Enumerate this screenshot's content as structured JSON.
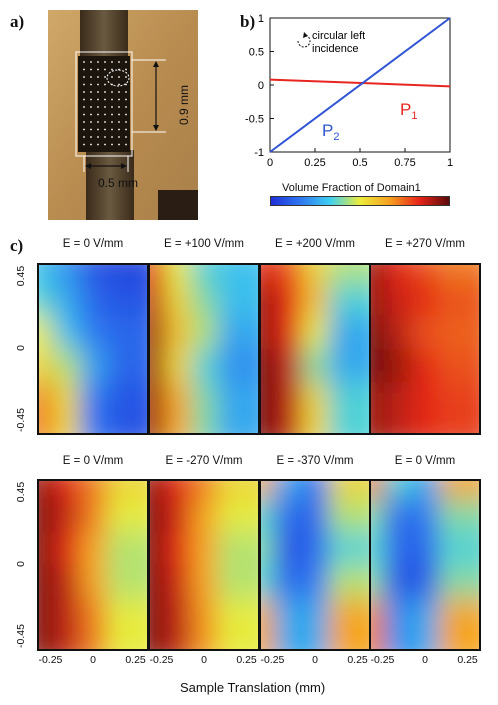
{
  "panel_labels": {
    "a": "a)",
    "b": "b)",
    "c": "c)"
  },
  "photo": {
    "dim_vertical": "0.9 mm",
    "dim_horizontal": "0.5 mm"
  },
  "chart_data": [
    {
      "type": "line",
      "panel": "b",
      "xlabel": "Volume Fraction of Domain1",
      "ylabel": "",
      "xlim": [
        0,
        1
      ],
      "ylim": [
        -1,
        1
      ],
      "xticks": [
        "0",
        "0.25",
        "0.5",
        "0.75",
        "1"
      ],
      "yticks": [
        "-1",
        "-0.5",
        "0",
        "0.5",
        "1"
      ],
      "annotation": "circular left incidence",
      "series": [
        {
          "name": "P1",
          "label_main": "P",
          "label_sub": "1",
          "color": "#e8251f",
          "x": [
            0,
            1
          ],
          "y": [
            0.08,
            -0.02
          ]
        },
        {
          "name": "P2",
          "label_main": "P",
          "label_sub": "2",
          "color": "#2f55d4",
          "x": [
            0,
            1
          ],
          "y": [
            -1,
            1
          ]
        }
      ],
      "colorbar": [
        "#1f2fd8",
        "#2f78f0",
        "#3fd0f0",
        "#ecec3a",
        "#f5a020",
        "#e82418",
        "#5a0a0a"
      ]
    },
    {
      "type": "heatmap",
      "panel": "c",
      "xlabel": "Sample Translation (mm)",
      "yticks": [
        "0.45",
        "0",
        "-0.45"
      ],
      "xticks": [
        "-0.25",
        "0",
        "0.25"
      ],
      "rows": [
        {
          "fields": [
            "E = 0 V/mm",
            "E = +100 V/mm",
            "E = +200 V/mm",
            "E = +270 V/mm"
          ]
        },
        {
          "fields": [
            "E = 0 V/mm",
            "E = -270 V/mm",
            "E = -370 V/mm",
            "E = 0 V/mm"
          ]
        }
      ],
      "maps": [
        [
          [
            0.35,
            0.25,
            0.1,
            0.05
          ],
          [
            0.4,
            0.3,
            0.15,
            0.1
          ],
          [
            0.55,
            0.35,
            0.2,
            0.15
          ],
          [
            0.6,
            0.5,
            0.3,
            0.15
          ],
          [
            0.75,
            0.6,
            0.2,
            0.1
          ]
        ],
        [
          [
            0.85,
            0.55,
            0.4,
            0.35
          ],
          [
            0.9,
            0.6,
            0.45,
            0.35
          ],
          [
            0.95,
            0.65,
            0.5,
            0.3
          ],
          [
            0.95,
            0.6,
            0.4,
            0.25
          ],
          [
            0.95,
            0.7,
            0.45,
            0.3
          ]
        ],
        [
          [
            0.85,
            0.8,
            0.6,
            0.5
          ],
          [
            0.95,
            0.85,
            0.65,
            0.4
          ],
          [
            0.95,
            0.85,
            0.55,
            0.3
          ],
          [
            1.0,
            0.9,
            0.45,
            0.3
          ],
          [
            1.0,
            0.9,
            0.6,
            0.4
          ]
        ],
        [
          [
            0.95,
            0.85,
            0.8,
            0.75
          ],
          [
            0.95,
            0.88,
            0.85,
            0.8
          ],
          [
            1.0,
            0.9,
            0.8,
            0.78
          ],
          [
            1.0,
            0.95,
            0.85,
            0.8
          ],
          [
            0.95,
            0.9,
            0.85,
            0.82
          ]
        ],
        [
          [
            0.95,
            0.85,
            0.75,
            0.6
          ],
          [
            0.98,
            0.9,
            0.75,
            0.55
          ],
          [
            0.98,
            0.85,
            0.7,
            0.5
          ],
          [
            0.98,
            0.9,
            0.7,
            0.5
          ],
          [
            0.98,
            0.9,
            0.75,
            0.55
          ]
        ],
        [
          [
            0.95,
            0.85,
            0.75,
            0.6
          ],
          [
            0.98,
            0.88,
            0.7,
            0.55
          ],
          [
            0.98,
            0.85,
            0.7,
            0.5
          ],
          [
            0.98,
            0.88,
            0.7,
            0.5
          ],
          [
            0.98,
            0.9,
            0.72,
            0.55
          ]
        ],
        [
          [
            0.7,
            0.3,
            0.2,
            0.6
          ],
          [
            0.4,
            0.15,
            0.15,
            0.5
          ],
          [
            0.45,
            0.1,
            0.15,
            0.4
          ],
          [
            0.4,
            0.15,
            0.2,
            0.5
          ],
          [
            0.7,
            0.3,
            0.3,
            0.7
          ]
        ],
        [
          [
            0.75,
            0.4,
            0.3,
            0.7
          ],
          [
            0.45,
            0.15,
            0.2,
            0.45
          ],
          [
            0.4,
            0.15,
            0.15,
            0.4
          ],
          [
            0.45,
            0.1,
            0.1,
            0.45
          ],
          [
            0.75,
            0.25,
            0.3,
            0.7
          ]
        ]
      ]
    }
  ]
}
